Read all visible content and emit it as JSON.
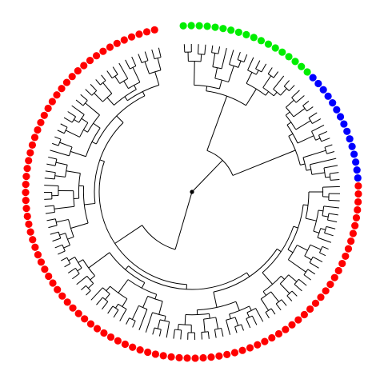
{
  "colors": {
    "background": "#ffffff",
    "branch": "#000000",
    "root": "#000000",
    "group_a": "#00ee00",
    "group_b": "#0000ff",
    "group_c": "#ff0000"
  },
  "tree": {
    "tip_count": 128,
    "groups": [
      {
        "name": "",
        "color_key": "group_a",
        "tip_count": 18
      },
      {
        "name": "",
        "color_key": "group_b",
        "tip_count": 15
      },
      {
        "name": "",
        "color_key": "group_c",
        "tip_count": 95
      }
    ]
  }
}
